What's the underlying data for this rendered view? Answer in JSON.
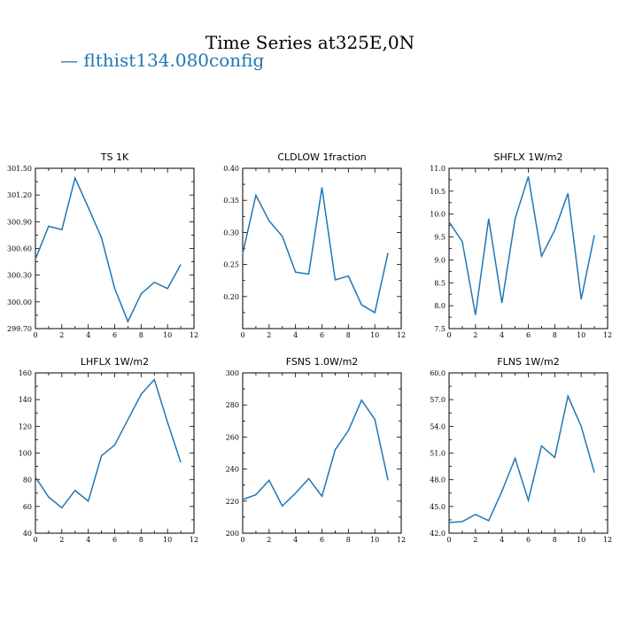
{
  "figure": {
    "title": "Time Series at325E,0N",
    "legend": {
      "label": "— flthist134.080config",
      "color": "#1f77b4"
    }
  },
  "chart_data": [
    {
      "type": "line",
      "title": "TS   1K",
      "x": [
        0,
        1,
        2,
        3,
        4,
        5,
        6,
        7,
        8,
        9,
        10,
        11
      ],
      "series": [
        {
          "values": [
            300.48,
            300.85,
            300.81,
            301.39,
            301.06,
            300.72,
            300.15,
            299.78,
            300.09,
            300.22,
            300.15,
            300.42
          ],
          "color": "#1f77b4"
        }
      ],
      "xlim": [
        0,
        12
      ],
      "ylim": [
        299.7,
        301.5
      ],
      "xticks": [
        "0",
        "2",
        "4",
        "6",
        "8",
        "10",
        "12"
      ],
      "yticks": [
        "299.70",
        "300.00",
        "300.30",
        "300.60",
        "300.90",
        "301.20",
        "301.50"
      ]
    },
    {
      "type": "line",
      "title": "CLDLOW   1fraction",
      "x": [
        0,
        1,
        2,
        3,
        4,
        5,
        6,
        7,
        8,
        9,
        10,
        11
      ],
      "series": [
        {
          "values": [
            0.267,
            0.358,
            0.318,
            0.294,
            0.238,
            0.235,
            0.37,
            0.226,
            0.232,
            0.187,
            0.175,
            0.268
          ],
          "color": "#1f77b4"
        }
      ],
      "xlim": [
        0,
        12
      ],
      "ylim": [
        0.15,
        0.4
      ],
      "xticks": [
        "0",
        "2",
        "4",
        "6",
        "8",
        "10",
        "12"
      ],
      "yticks": [
        "0.20",
        "0.25",
        "0.30",
        "0.35",
        "0.40"
      ]
    },
    {
      "type": "line",
      "title": "SHFLX   1W/m2",
      "x": [
        0,
        1,
        2,
        3,
        4,
        5,
        6,
        7,
        8,
        9,
        10,
        11
      ],
      "series": [
        {
          "values": [
            9.83,
            9.4,
            7.8,
            9.9,
            8.06,
            9.9,
            10.82,
            9.08,
            9.65,
            10.45,
            8.14,
            9.54
          ],
          "color": "#1f77b4"
        }
      ],
      "xlim": [
        0,
        12
      ],
      "ylim": [
        7.5,
        11.0
      ],
      "xticks": [
        "0",
        "2",
        "4",
        "6",
        "8",
        "10",
        "12"
      ],
      "yticks": [
        "7.5",
        "8.0",
        "8.5",
        "9.0",
        "9.5",
        "10.0",
        "10.5",
        "11.0"
      ]
    },
    {
      "type": "line",
      "title": "LHFLX   1W/m2",
      "x": [
        0,
        1,
        2,
        3,
        4,
        5,
        6,
        7,
        8,
        9,
        10,
        11
      ],
      "series": [
        {
          "values": [
            82,
            67,
            59,
            72,
            64,
            98,
            106,
            125,
            144,
            155,
            123,
            93
          ],
          "color": "#1f77b4"
        }
      ],
      "xlim": [
        0,
        12
      ],
      "ylim": [
        40,
        160
      ],
      "xticks": [
        "0",
        "2",
        "4",
        "6",
        "8",
        "10",
        "12"
      ],
      "yticks": [
        "40",
        "60",
        "80",
        "100",
        "120",
        "140",
        "160"
      ]
    },
    {
      "type": "line",
      "title": "FSNS   1.0W/m2",
      "x": [
        0,
        1,
        2,
        3,
        4,
        5,
        6,
        7,
        8,
        9,
        10,
        11
      ],
      "series": [
        {
          "values": [
            221,
            224,
            233,
            217,
            225,
            234,
            223,
            252,
            264,
            283,
            271,
            233
          ],
          "color": "#1f77b4"
        }
      ],
      "xlim": [
        0,
        12
      ],
      "ylim": [
        200,
        300
      ],
      "xticks": [
        "0",
        "2",
        "4",
        "6",
        "8",
        "10",
        "12"
      ],
      "yticks": [
        "200",
        "220",
        "240",
        "260",
        "280",
        "300"
      ]
    },
    {
      "type": "line",
      "title": "FLNS   1W/m2",
      "x": [
        0,
        1,
        2,
        3,
        4,
        5,
        6,
        7,
        8,
        9,
        10,
        11
      ],
      "series": [
        {
          "values": [
            43.2,
            43.3,
            44.1,
            43.4,
            46.7,
            50.4,
            45.7,
            51.8,
            50.5,
            57.4,
            54,
            48.8
          ],
          "color": "#1f77b4"
        }
      ],
      "xlim": [
        0,
        12
      ],
      "ylim": [
        42.0,
        60.0
      ],
      "xticks": [
        "0",
        "2",
        "4",
        "6",
        "8",
        "10",
        "12"
      ],
      "yticks": [
        "42.0",
        "45.0",
        "48.0",
        "51.0",
        "54.0",
        "57.0",
        "60.0"
      ]
    }
  ]
}
